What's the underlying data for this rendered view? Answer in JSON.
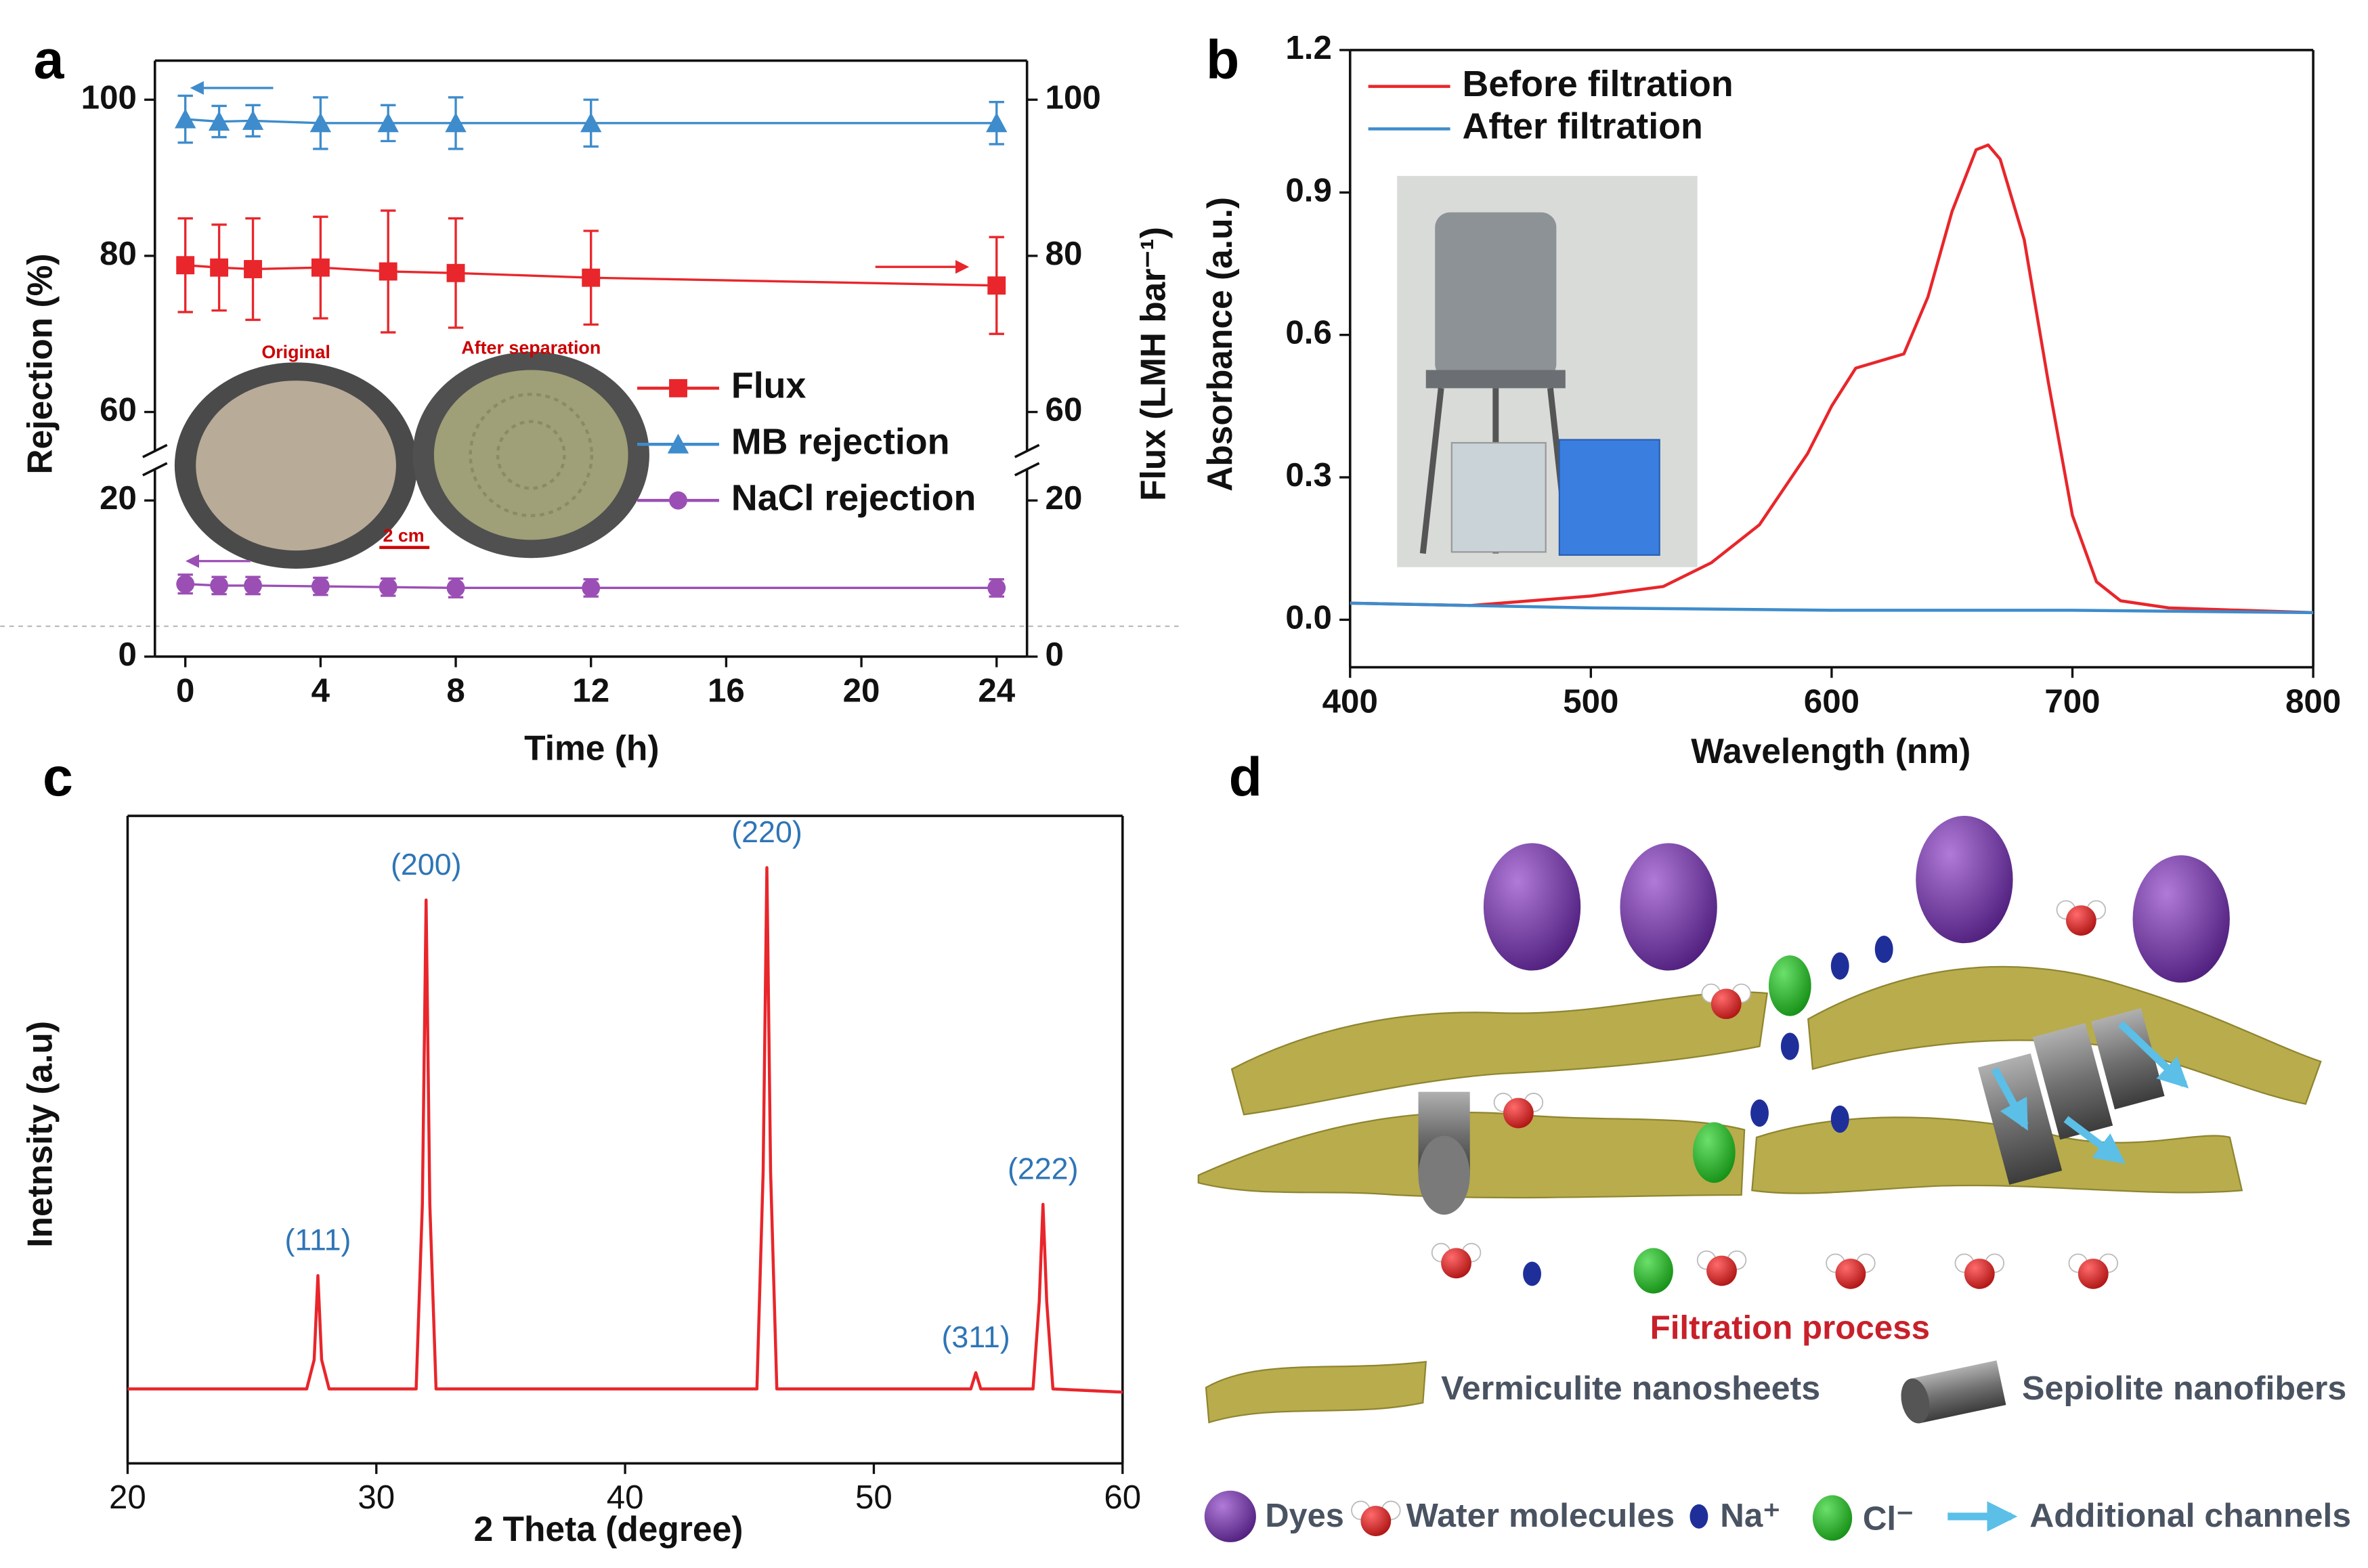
{
  "chart_data": [
    {
      "label": "a",
      "type": "line",
      "x": [
        0,
        1,
        2,
        4,
        6,
        8,
        12,
        24
      ],
      "xlim": [
        -0.9,
        24.9
      ],
      "xticks": [
        0,
        4,
        8,
        12,
        16,
        20,
        24
      ],
      "xlabel": "Time (h)",
      "ylabel": "Rejection (%)",
      "y2label": "Flux (LMH bar⁻¹)",
      "ylim_segments": [
        [
          0,
          24
        ],
        [
          55,
          105
        ]
      ],
      "yticks": [
        0,
        20,
        60,
        80,
        100
      ],
      "y2lim_segments": [
        [
          0,
          24
        ],
        [
          55,
          105
        ]
      ],
      "y2ticks": [
        0,
        20,
        60,
        80,
        100
      ],
      "legend": "center right",
      "series": [
        {
          "name": "Flux",
          "color": "#e8262b",
          "marker": "square",
          "axis": "y2",
          "values": [
            78.8,
            78.5,
            78.3,
            78.5,
            78,
            77.8,
            77.2,
            76.2
          ],
          "errors": [
            6,
            5.5,
            6.5,
            6.5,
            7.8,
            7,
            6,
            6.2
          ]
        },
        {
          "name": "MB rejection",
          "color": "#3e8ccc",
          "marker": "triangle",
          "values": [
            97.5,
            97.2,
            97.3,
            97,
            97,
            97,
            97,
            97
          ],
          "errors": [
            3,
            2,
            2,
            3.3,
            2.3,
            3.3,
            3,
            2.7
          ]
        },
        {
          "name": "NaCl rejection",
          "color": "#9b4fb5",
          "marker": "circle",
          "values": [
            9.3,
            9.1,
            9.1,
            9,
            8.9,
            8.8,
            8.8,
            8.8
          ],
          "errors": [
            1.2,
            1.1,
            1.1,
            1.1,
            1.1,
            1.2,
            1.1,
            1.1
          ]
        }
      ],
      "inset_labels": [
        "Original",
        "After separation",
        "2 cm"
      ]
    },
    {
      "label": "b",
      "type": "line",
      "xlim": [
        400,
        800
      ],
      "xticks": [
        400,
        500,
        600,
        700,
        800
      ],
      "ylim": [
        -0.1,
        1.2
      ],
      "yticks": [
        {
          "value": 0,
          "label": "0.0"
        },
        0.3,
        0.6,
        0.9,
        1.2
      ],
      "xlabel": "Wavelength (nm)",
      "ylabel": "Absorbance (a.u.)",
      "legend": "upper left",
      "series": [
        {
          "name": "Before filtration",
          "color": "#e8262b",
          "x": [
            400,
            450,
            500,
            530,
            550,
            570,
            590,
            600,
            610,
            620,
            630,
            640,
            650,
            660,
            665,
            670,
            680,
            690,
            700,
            710,
            720,
            740,
            800
          ],
          "values": [
            0.035,
            0.03,
            0.05,
            0.07,
            0.12,
            0.2,
            0.35,
            0.45,
            0.53,
            0.545,
            0.56,
            0.68,
            0.86,
            0.99,
            1.0,
            0.97,
            0.8,
            0.5,
            0.22,
            0.08,
            0.04,
            0.025,
            0.015
          ]
        },
        {
          "name": "After filtration",
          "color": "#3e8ccc",
          "x": [
            400,
            500,
            600,
            700,
            800
          ],
          "values": [
            0.035,
            0.025,
            0.02,
            0.02,
            0.015
          ]
        }
      ]
    },
    {
      "label": "c",
      "type": "line",
      "xlim": [
        20,
        60
      ],
      "xticks": [
        20,
        30,
        40,
        50,
        60
      ],
      "ylim": [
        0,
        100
      ],
      "xlabel": "2 Theta (degree)",
      "ylabel": "Inetnsity (a.u)",
      "series": [
        {
          "color": "#e8262b",
          "x": [
            20,
            27.2,
            27.5,
            27.65,
            27.8,
            28.1,
            31.6,
            31.85,
            32.0,
            32.15,
            32.4,
            45.3,
            45.55,
            45.7,
            45.85,
            46.1,
            53.9,
            54.1,
            54.3,
            56.4,
            56.65,
            56.8,
            56.95,
            57.2,
            60
          ],
          "values": [
            11.5,
            11.5,
            16,
            29,
            16,
            11.5,
            11.5,
            40,
            87,
            40,
            11.5,
            11.5,
            45,
            92,
            45,
            11.5,
            11.5,
            14,
            11.5,
            11.5,
            25,
            40,
            25,
            11.5,
            11
          ]
        }
      ],
      "annotations": [
        {
          "label": "(111)",
          "x": 27.65
        },
        {
          "label": "(200)",
          "x": 32.0
        },
        {
          "label": "(220)",
          "x": 45.7
        },
        {
          "label": "(311)",
          "x": 54.1
        },
        {
          "label": "(222)",
          "x": 56.8
        }
      ]
    }
  ],
  "diagram": {
    "label": "d",
    "caption": "Filtration process",
    "legend": [
      "Vermiculite nanosheets",
      "Sepiolite nanofibers",
      "Dyes",
      "Water molecules",
      "Na⁺",
      "Cl⁻",
      "Additional channels"
    ]
  }
}
